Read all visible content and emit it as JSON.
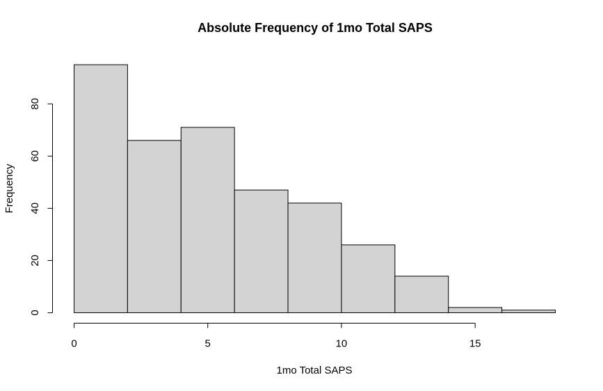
{
  "chart_data": {
    "type": "bar",
    "title": "Absolute Frequency of 1mo Total SAPS",
    "xlabel": "1mo Total SAPS",
    "ylabel": "Frequency",
    "bin_edges": [
      0,
      2,
      4,
      6,
      8,
      10,
      12,
      14,
      16,
      18
    ],
    "values": [
      95,
      66,
      71,
      47,
      42,
      26,
      14,
      2,
      1
    ],
    "xlim": [
      0,
      18
    ],
    "ylim": [
      0,
      95
    ],
    "x_ticks": [
      0,
      5,
      10,
      15
    ],
    "y_ticks": [
      0,
      20,
      40,
      60,
      80
    ],
    "grid": false,
    "legend": "none",
    "colors": {
      "bar_fill": "#d3d3d3",
      "bar_stroke": "#000000",
      "axis": "#000000",
      "background": "#ffffff"
    }
  }
}
